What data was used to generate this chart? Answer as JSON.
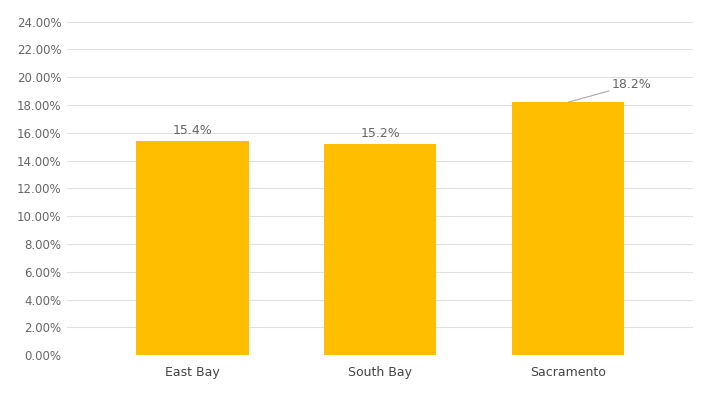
{
  "categories": [
    "East Bay",
    "South Bay",
    "Sacramento"
  ],
  "values": [
    0.154,
    0.152,
    0.182
  ],
  "labels": [
    "15.4%",
    "15.2%",
    "18.2%"
  ],
  "bar_color": "#FFBF00",
  "background_color": "#ffffff",
  "ylim": [
    0,
    0.24
  ],
  "yticks": [
    0.0,
    0.02,
    0.04,
    0.06,
    0.08,
    0.1,
    0.12,
    0.14,
    0.16,
    0.18,
    0.2,
    0.22,
    0.24
  ],
  "ytick_labels": [
    "0.00%",
    "2.00%",
    "4.00%",
    "6.00%",
    "8.00%",
    "10.00%",
    "12.00%",
    "14.00%",
    "16.00%",
    "18.00%",
    "20.00%",
    "22.00%",
    "24.00%"
  ],
  "grid_color": "#e0e0e0",
  "label_fontsize": 9,
  "tick_fontsize": 8.5,
  "bar_width": 0.18,
  "x_positions": [
    0.2,
    0.5,
    0.8
  ],
  "xlim": [
    0.0,
    1.0
  ]
}
